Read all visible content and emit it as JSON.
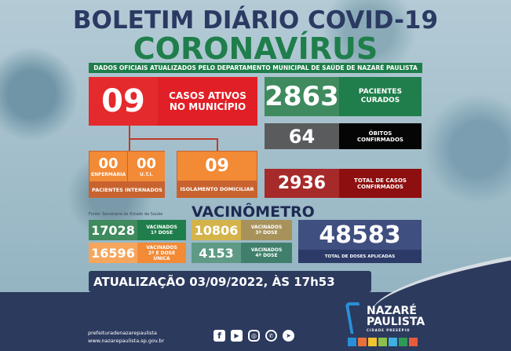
{
  "header": {
    "title": "BOLETIM DIÁRIO COVID-19",
    "subtitle": "CORONAVÍRUS",
    "banner": "DADOS OFICIAIS ATUALIZADOS PELO DEPARTAMENTO MUNICIPAL DE SAÚDE DE NAZARÉ PAULISTA"
  },
  "ativos": {
    "value": "09",
    "label": "CASOS ATIVOS NO MUNICÍPIO"
  },
  "internados": {
    "enfermaria_value": "00",
    "enfermaria_label": "ENFERMARIA",
    "uti_value": "00",
    "uti_label": "U.T.I.",
    "label": "PACIENTES INTERNADOS"
  },
  "isolamento": {
    "value": "09",
    "label": "ISOLAMENTO DOMICILIAR"
  },
  "curados": {
    "value": "2863",
    "label": "PACIENTES CURADOS"
  },
  "obitos": {
    "value": "64",
    "label": "ÓBITOS CONFIRMADOS"
  },
  "confirmados": {
    "value": "2936",
    "label": "TOTAL DE CASOS CONFIRMADOS"
  },
  "vacinometro": {
    "title": "VACINÔMETRO",
    "source": "Fonte: Secretaria de Estado da Saúde",
    "dose1": {
      "value": "17028",
      "label": "VACINADOS 1ª DOSE"
    },
    "dose2": {
      "value": "16596",
      "label": "VACINADOS 2ª E DOSE ÚNICA"
    },
    "dose3": {
      "value": "10806",
      "label": "VACINADOS 3ª DOSE"
    },
    "dose4": {
      "value": "4153",
      "label": "VACINADOS 4ª DOSE"
    },
    "total": {
      "value": "48583",
      "label": "TOTAL DE DOSES APLICADAS"
    }
  },
  "update": "ATUALIZAÇÃO 03/09/2022, ÀS 17h53",
  "footer": {
    "social_handle": "prefeituradenazarepaulista",
    "website": "www.nazarepaulista.sp.gov.br",
    "icons": [
      "facebook-icon",
      "youtube-icon",
      "instagram-icon",
      "whatsapp-icon",
      "telegram-icon"
    ],
    "logo": {
      "line1": "NAZARÉ",
      "line2": "PAULISTA",
      "tag": "CIDADE PRESÉPIO"
    }
  }
}
